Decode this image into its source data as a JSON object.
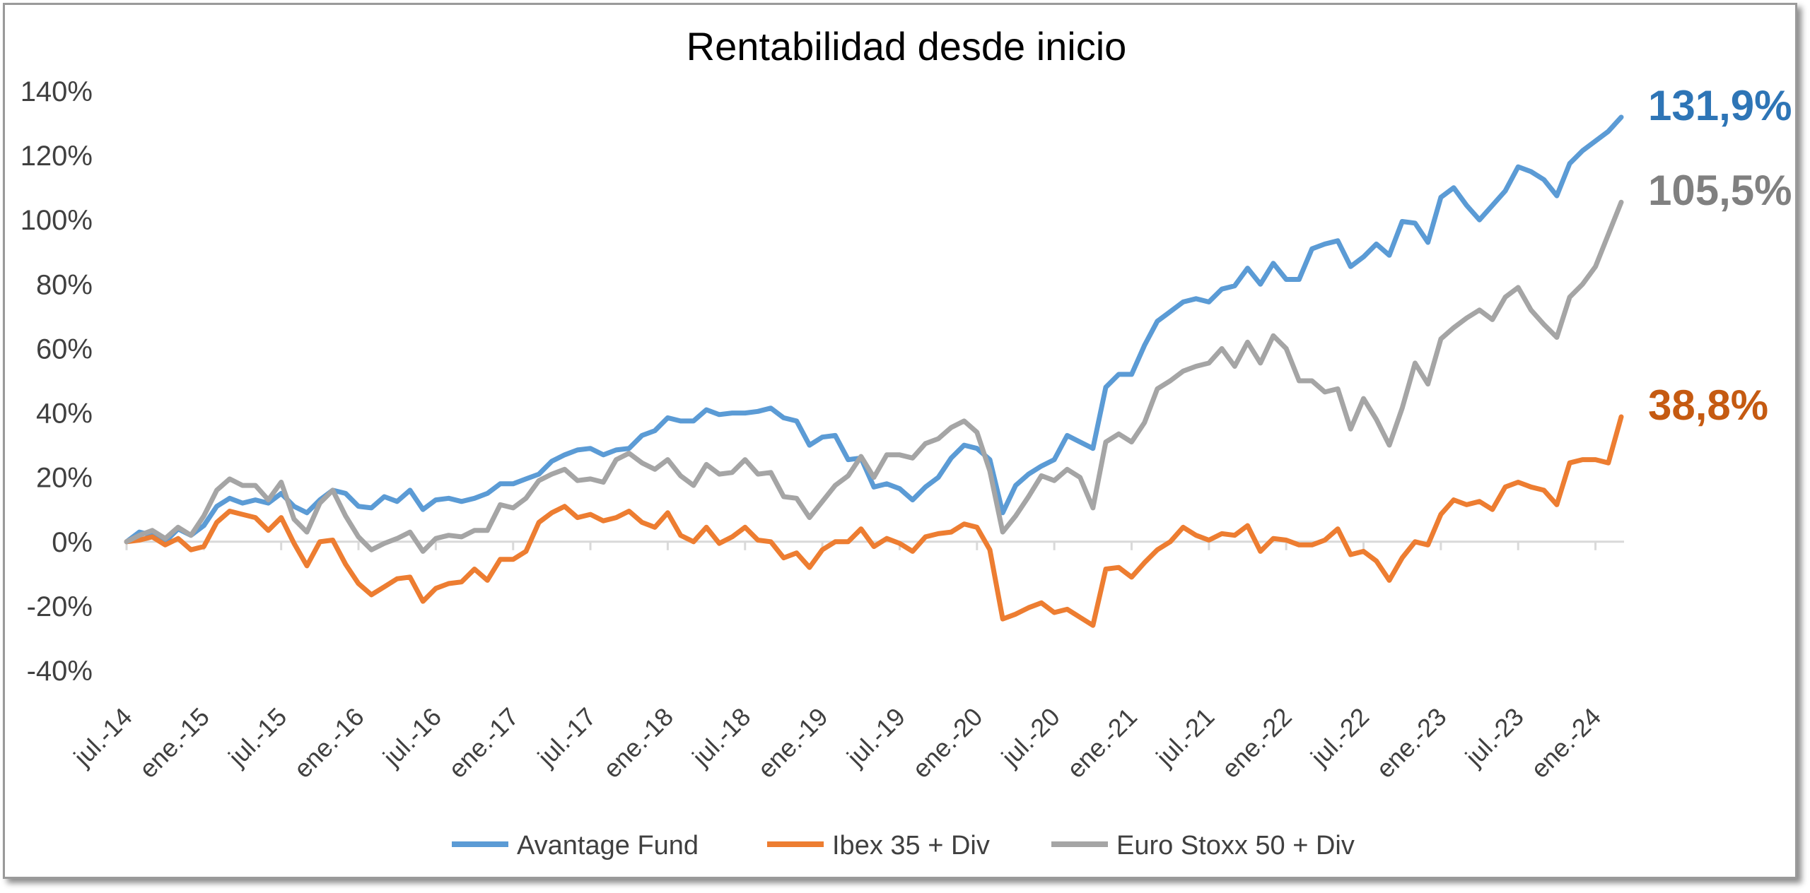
{
  "chart_data": {
    "type": "line",
    "title": "Rentabilidad desde inicio",
    "xlabel": "",
    "ylabel": "",
    "ylim": [
      -0.4,
      1.4
    ],
    "y_ticks": [
      "140%",
      "120%",
      "100%",
      "80%",
      "60%",
      "40%",
      "20%",
      "0%",
      "-20%",
      "-40%"
    ],
    "x_ticks": [
      "jul.-14",
      "ene.-15",
      "jul.-15",
      "ene.-16",
      "jul.-16",
      "ene.-17",
      "jul.-17",
      "ene.-18",
      "jul.-18",
      "ene.-19",
      "jul.-19",
      "ene.-20",
      "jul.-20",
      "ene.-21",
      "jul.-21",
      "ene.-22",
      "jul.-22",
      "ene.-23",
      "jul.-23",
      "ene.-24"
    ],
    "grid": false,
    "legend": "bottom",
    "start": "jul.-14",
    "frequency": "monthly",
    "series": [
      {
        "name": "Avantage Fund",
        "color": "#5b9bd5",
        "end_label": "131,9%",
        "end_label_color": "#2e75b6",
        "values": [
          0.0,
          0.03,
          0.02,
          0.0,
          0.04,
          0.02,
          0.05,
          0.11,
          0.135,
          0.12,
          0.13,
          0.12,
          0.15,
          0.11,
          0.09,
          0.13,
          0.16,
          0.15,
          0.11,
          0.105,
          0.14,
          0.125,
          0.16,
          0.1,
          0.13,
          0.135,
          0.125,
          0.135,
          0.15,
          0.18,
          0.18,
          0.195,
          0.21,
          0.25,
          0.27,
          0.285,
          0.29,
          0.27,
          0.285,
          0.29,
          0.33,
          0.345,
          0.385,
          0.375,
          0.375,
          0.41,
          0.395,
          0.4,
          0.4,
          0.405,
          0.415,
          0.385,
          0.375,
          0.3,
          0.325,
          0.33,
          0.255,
          0.26,
          0.17,
          0.18,
          0.165,
          0.13,
          0.17,
          0.2,
          0.26,
          0.3,
          0.29,
          0.255,
          0.09,
          0.175,
          0.21,
          0.235,
          0.255,
          0.33,
          0.31,
          0.29,
          0.48,
          0.52,
          0.52,
          0.61,
          0.685,
          0.715,
          0.745,
          0.755,
          0.745,
          0.785,
          0.795,
          0.85,
          0.8,
          0.865,
          0.815,
          0.815,
          0.91,
          0.925,
          0.935,
          0.855,
          0.885,
          0.925,
          0.89,
          0.995,
          0.99,
          0.93,
          1.07,
          1.1,
          1.045,
          1.0,
          1.045,
          1.09,
          1.165,
          1.15,
          1.125,
          1.075,
          1.175,
          1.215,
          1.245,
          1.275,
          1.319
        ]
      },
      {
        "name": "Ibex 35 + Div",
        "color": "#ed7d31",
        "end_label": "38,8%",
        "end_label_color": "#c55a11",
        "values": [
          0.0,
          0.005,
          0.015,
          -0.01,
          0.01,
          -0.025,
          -0.015,
          0.06,
          0.095,
          0.085,
          0.075,
          0.035,
          0.075,
          -0.005,
          -0.075,
          0.0,
          0.005,
          -0.07,
          -0.13,
          -0.165,
          -0.14,
          -0.115,
          -0.11,
          -0.185,
          -0.145,
          -0.13,
          -0.125,
          -0.085,
          -0.12,
          -0.055,
          -0.055,
          -0.03,
          0.06,
          0.09,
          0.11,
          0.075,
          0.085,
          0.065,
          0.075,
          0.095,
          0.06,
          0.045,
          0.09,
          0.02,
          0.0,
          0.045,
          -0.005,
          0.015,
          0.045,
          0.005,
          0.0,
          -0.05,
          -0.035,
          -0.08,
          -0.025,
          0.0,
          0.0,
          0.04,
          -0.015,
          0.01,
          -0.005,
          -0.03,
          0.015,
          0.025,
          0.03,
          0.055,
          0.045,
          -0.025,
          -0.24,
          -0.225,
          -0.205,
          -0.19,
          -0.22,
          -0.21,
          -0.235,
          -0.26,
          -0.085,
          -0.08,
          -0.11,
          -0.065,
          -0.025,
          0.0,
          0.045,
          0.02,
          0.005,
          0.025,
          0.02,
          0.05,
          -0.03,
          0.01,
          0.005,
          -0.01,
          -0.01,
          0.005,
          0.04,
          -0.04,
          -0.03,
          -0.06,
          -0.12,
          -0.05,
          0.0,
          -0.01,
          0.085,
          0.13,
          0.115,
          0.125,
          0.1,
          0.17,
          0.185,
          0.17,
          0.16,
          0.115,
          0.245,
          0.255,
          0.255,
          0.245,
          0.388
        ]
      },
      {
        "name": "Euro Stoxx 50 + Div",
        "color": "#a5a5a5",
        "end_label": "105,5%",
        "end_label_color": "#808080",
        "values": [
          0.0,
          0.02,
          0.035,
          0.01,
          0.045,
          0.02,
          0.08,
          0.16,
          0.195,
          0.175,
          0.175,
          0.13,
          0.185,
          0.07,
          0.03,
          0.12,
          0.16,
          0.08,
          0.015,
          -0.025,
          -0.005,
          0.01,
          0.03,
          -0.03,
          0.01,
          0.02,
          0.015,
          0.035,
          0.035,
          0.115,
          0.105,
          0.135,
          0.19,
          0.21,
          0.225,
          0.19,
          0.195,
          0.185,
          0.255,
          0.275,
          0.245,
          0.225,
          0.255,
          0.205,
          0.175,
          0.24,
          0.21,
          0.215,
          0.255,
          0.21,
          0.215,
          0.14,
          0.135,
          0.075,
          0.125,
          0.175,
          0.205,
          0.265,
          0.2,
          0.27,
          0.27,
          0.26,
          0.305,
          0.32,
          0.355,
          0.375,
          0.34,
          0.22,
          0.03,
          0.08,
          0.14,
          0.205,
          0.19,
          0.225,
          0.2,
          0.105,
          0.31,
          0.335,
          0.31,
          0.37,
          0.475,
          0.5,
          0.53,
          0.545,
          0.555,
          0.6,
          0.545,
          0.62,
          0.555,
          0.64,
          0.6,
          0.5,
          0.5,
          0.465,
          0.475,
          0.35,
          0.445,
          0.38,
          0.3,
          0.415,
          0.555,
          0.49,
          0.63,
          0.665,
          0.695,
          0.72,
          0.69,
          0.76,
          0.79,
          0.72,
          0.675,
          0.635,
          0.76,
          0.8,
          0.855,
          0.955,
          1.055
        ]
      }
    ]
  }
}
